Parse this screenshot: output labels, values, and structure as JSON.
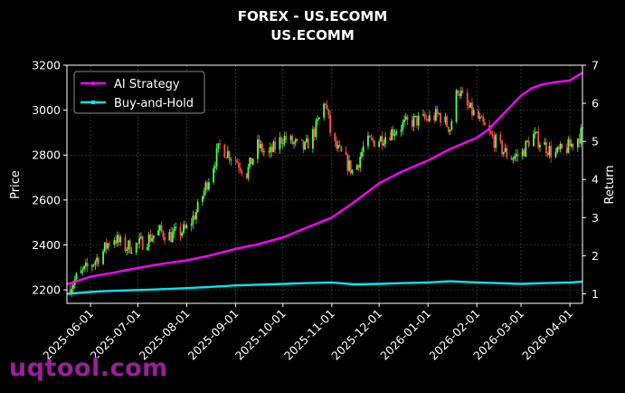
{
  "title": "FOREX - US.ECOMM",
  "subtitle": "US.ECOMM",
  "watermark": "uqtool.com",
  "chart_data": {
    "type": "line",
    "title": "FOREX - US.ECOMM",
    "subtitle": "US.ECOMM",
    "ylabel": "Price",
    "y2label": "Return",
    "ylim": [
      2140,
      3200
    ],
    "y2lim": [
      0.75,
      7.0
    ],
    "yticks": [
      "2200",
      "2400",
      "2600",
      "2800",
      "3000",
      "3200"
    ],
    "y2ticks": [
      "1",
      "2",
      "3",
      "4",
      "5",
      "6",
      "7"
    ],
    "xlim": [
      "2025-05-17",
      "2026-04-09"
    ],
    "xticks": [
      "2025-06-01",
      "2025-07-01",
      "2025-08-01",
      "2025-09-01",
      "2025-10-01",
      "2025-11-01",
      "2025-12-01",
      "2026-01-01",
      "2026-02-01",
      "2026-03-01",
      "2026-04-01"
    ],
    "grid": true,
    "legend_position": "top-left",
    "colors": {
      "background": "#000000",
      "up_candle": "#4cff4c",
      "down_candle": "#ff4c4c",
      "ai_strategy": "#ff00ff",
      "buy_and_hold": "#00e5ee",
      "grid": "#555555",
      "axes": "#ffffff"
    },
    "price_path": {
      "name": "Price",
      "dates": [
        "2025-05-17",
        "2025-05-24",
        "2025-06-01",
        "2025-06-08",
        "2025-06-15",
        "2025-06-22",
        "2025-07-01",
        "2025-07-08",
        "2025-07-15",
        "2025-07-22",
        "2025-08-01",
        "2025-08-08",
        "2025-08-15",
        "2025-08-22",
        "2025-09-01",
        "2025-09-08",
        "2025-09-15",
        "2025-09-22",
        "2025-10-01",
        "2025-10-08",
        "2025-10-15",
        "2025-10-22",
        "2025-10-28",
        "2025-11-01",
        "2025-11-08",
        "2025-11-15",
        "2025-11-22",
        "2025-12-01",
        "2025-12-08",
        "2025-12-15",
        "2025-12-22",
        "2026-01-01",
        "2026-01-08",
        "2026-01-15",
        "2026-01-20",
        "2026-01-25",
        "2026-02-01",
        "2026-02-08",
        "2026-02-15",
        "2026-02-22",
        "2026-03-01",
        "2026-03-08",
        "2026-03-15",
        "2026-03-22",
        "2026-04-01",
        "2026-04-09"
      ],
      "values": [
        2200,
        2260,
        2310,
        2360,
        2440,
        2390,
        2400,
        2430,
        2460,
        2440,
        2470,
        2560,
        2700,
        2840,
        2780,
        2720,
        2840,
        2800,
        2880,
        2850,
        2830,
        2920,
        3040,
        2860,
        2790,
        2720,
        2850,
        2870,
        2900,
        2930,
        2950,
        2960,
        2980,
        2920,
        3100,
        3020,
        2970,
        2900,
        2840,
        2790,
        2800,
        2890,
        2850,
        2800,
        2840,
        2900
      ]
    },
    "series": [
      {
        "name": "AI Strategy",
        "dates": [
          "2025-05-17",
          "2025-06-01",
          "2025-06-15",
          "2025-07-01",
          "2025-07-15",
          "2025-08-01",
          "2025-08-15",
          "2025-09-01",
          "2025-09-15",
          "2025-10-01",
          "2025-10-15",
          "2025-11-01",
          "2025-11-15",
          "2025-12-01",
          "2025-12-15",
          "2026-01-01",
          "2026-01-15",
          "2026-02-01",
          "2026-02-08",
          "2026-02-15",
          "2026-02-22",
          "2026-03-01",
          "2026-03-08",
          "2026-03-15",
          "2026-03-22",
          "2026-04-01",
          "2026-04-09"
        ],
        "values": [
          1.25,
          1.45,
          1.55,
          1.68,
          1.78,
          1.88,
          2.0,
          2.18,
          2.3,
          2.48,
          2.72,
          3.0,
          3.4,
          3.9,
          4.2,
          4.5,
          4.8,
          5.1,
          5.3,
          5.6,
          5.9,
          6.2,
          6.4,
          6.5,
          6.55,
          6.6,
          6.8
        ]
      },
      {
        "name": "Buy-and-Hold",
        "dates": [
          "2025-05-17",
          "2025-06-01",
          "2025-06-15",
          "2025-07-01",
          "2025-07-15",
          "2025-08-01",
          "2025-08-15",
          "2025-09-01",
          "2025-09-15",
          "2025-10-01",
          "2025-10-15",
          "2025-11-01",
          "2025-11-15",
          "2025-12-01",
          "2025-12-15",
          "2026-01-01",
          "2026-01-15",
          "2026-02-01",
          "2026-02-15",
          "2026-03-01",
          "2026-03-15",
          "2026-04-01",
          "2026-04-09"
        ],
        "values": [
          1.0,
          1.05,
          1.08,
          1.1,
          1.12,
          1.15,
          1.18,
          1.22,
          1.24,
          1.26,
          1.28,
          1.3,
          1.25,
          1.26,
          1.28,
          1.3,
          1.33,
          1.3,
          1.28,
          1.26,
          1.28,
          1.3,
          1.32
        ]
      }
    ]
  }
}
